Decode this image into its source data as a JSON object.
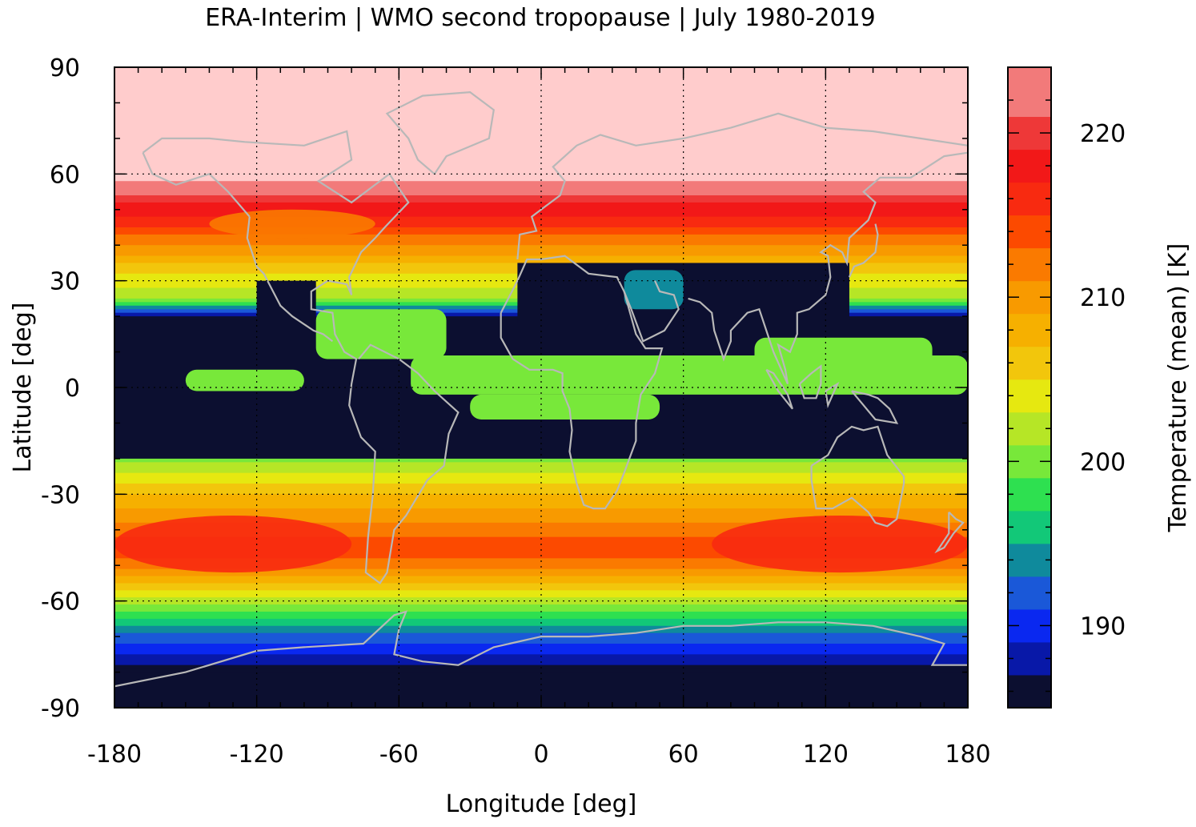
{
  "chart_data": {
    "type": "heatmap",
    "title": "ERA-Interim | WMO second tropopause | July 1980-2019",
    "xlabel": "Longitude [deg]",
    "ylabel": "Latitude [deg]",
    "colorbar_label": "Temperature (mean) [K]",
    "xlim": [
      -180,
      180
    ],
    "ylim": [
      -90,
      90
    ],
    "xticks": [
      -180,
      -120,
      -60,
      0,
      60,
      120,
      180
    ],
    "yticks": [
      90,
      60,
      30,
      0,
      -30,
      -60,
      -90
    ],
    "colorbar_ticks": [
      220,
      210,
      200,
      190
    ],
    "colorbar_range": [
      185,
      224
    ],
    "grid": true,
    "overlay": "coastlines",
    "colormap": [
      {
        "from": 185,
        "to": 187,
        "color": "#0c0f30"
      },
      {
        "from": 187,
        "to": 189,
        "color": "#0818a8"
      },
      {
        "from": 189,
        "to": 191,
        "color": "#0a28f0"
      },
      {
        "from": 191,
        "to": 193,
        "color": "#1a58d8"
      },
      {
        "from": 193,
        "to": 195,
        "color": "#0f8a9c"
      },
      {
        "from": 195,
        "to": 197,
        "color": "#12c878"
      },
      {
        "from": 197,
        "to": 199,
        "color": "#2ee050"
      },
      {
        "from": 199,
        "to": 201,
        "color": "#78e83a"
      },
      {
        "from": 201,
        "to": 203,
        "color": "#b6e626"
      },
      {
        "from": 203,
        "to": 205,
        "color": "#e6e810"
      },
      {
        "from": 205,
        "to": 207,
        "color": "#f2c60c"
      },
      {
        "from": 207,
        "to": 209,
        "color": "#f6b000"
      },
      {
        "from": 209,
        "to": 211,
        "color": "#f89a00"
      },
      {
        "from": 211,
        "to": 213,
        "color": "#fa7a00"
      },
      {
        "from": 213,
        "to": 215,
        "color": "#fc4a00"
      },
      {
        "from": 215,
        "to": 217,
        "color": "#f82a10"
      },
      {
        "from": 217,
        "to": 219,
        "color": "#f21818"
      },
      {
        "from": 219,
        "to": 221,
        "color": "#ee3838"
      },
      {
        "from": 221,
        "to": 224,
        "color": "#f27a7a"
      },
      {
        "from": 224,
        "to": 230,
        "color": "#ffcccc"
      }
    ],
    "zonal_mean_profile": {
      "lat": [
        90,
        75,
        60,
        55,
        52,
        48,
        44,
        40,
        36,
        32,
        28,
        24,
        20,
        16,
        10,
        6,
        2,
        -2,
        -6,
        -10,
        -16,
        -20,
        -24,
        -28,
        -32,
        -36,
        -40,
        -44,
        -48,
        -52,
        -56,
        -60,
        -64,
        -68,
        -72,
        -76,
        -80,
        -90
      ],
      "value": [
        226,
        226,
        225,
        222,
        219,
        217,
        214,
        211,
        208,
        205,
        203,
        200,
        186,
        186,
        186,
        200,
        200,
        186,
        186,
        186,
        186,
        200,
        203,
        206,
        208,
        210,
        212,
        214,
        213,
        210,
        206,
        202,
        198,
        194,
        191,
        188,
        186,
        186
      ]
    },
    "no_data_color": "#0c0f30"
  }
}
